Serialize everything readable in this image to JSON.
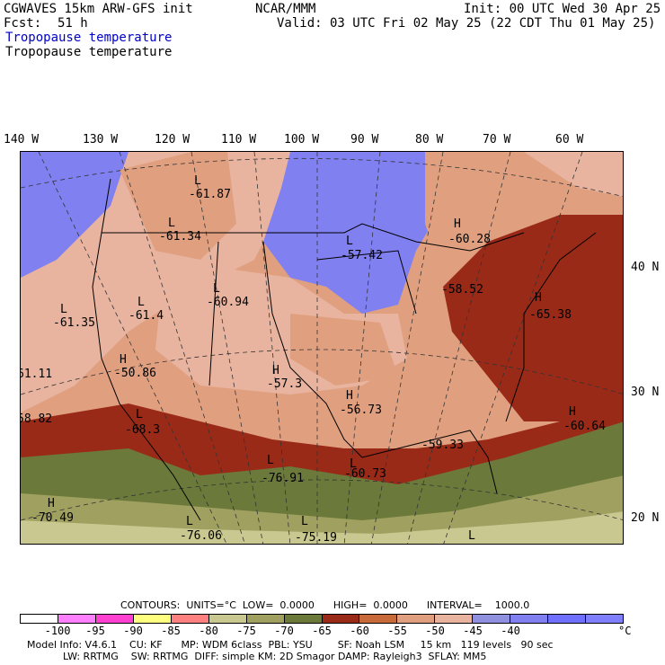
{
  "header": {
    "model": "CGWAVES 15km ARW-GFS init",
    "org": "NCAR/MMM",
    "init": "Init: 00 UTC Wed 30 Apr 25",
    "fcst_label": "Fcst:",
    "fcst_value": "51 h",
    "valid": "Valid: 03 UTC Fri 02 May 25 (22 CDT Thu 01 May 25)",
    "field_title_1": "Tropopause temperature",
    "field_title_2": "Tropopause temperature"
  },
  "longitude_labels": [
    "140 W",
    "130 W",
    "120 W",
    "110 W",
    "100 W",
    "90 W",
    "80 W",
    "70 W",
    "60 W"
  ],
  "latitude_labels": [
    "40 N",
    "30 N",
    "20 N"
  ],
  "pressure_centers": [
    {
      "type": "L",
      "value": "-61.87"
    },
    {
      "type": "L",
      "value": "-61.34"
    },
    {
      "type": "L",
      "value": "-60.94"
    },
    {
      "type": "L",
      "value": "-61.4"
    },
    {
      "type": "L",
      "value": "-61.35"
    },
    {
      "type": "H",
      "value": "-50.86"
    },
    {
      "type": "",
      "value": "61.11"
    },
    {
      "type": "",
      "value": "58.82"
    },
    {
      "type": "L",
      "value": "-68.3"
    },
    {
      "type": "H",
      "value": "-70.49"
    },
    {
      "type": "L",
      "value": "-76.06"
    },
    {
      "type": "L",
      "value": "-76.91"
    },
    {
      "type": "L",
      "value": "-75.19"
    },
    {
      "type": "H",
      "value": "-57.3"
    },
    {
      "type": "H",
      "value": "-56.73"
    },
    {
      "type": "L",
      "value": "-60.73"
    },
    {
      "type": "L",
      "value": "-57.42"
    },
    {
      "type": "H",
      "value": "-60.28"
    },
    {
      "type": "",
      "value": "-58.52"
    },
    {
      "type": "H",
      "value": "-65.38"
    },
    {
      "type": "",
      "value": "-59.33"
    },
    {
      "type": "H",
      "value": "-60.64"
    },
    {
      "type": "L",
      "value": ""
    }
  ],
  "contours": {
    "text": "CONTOURS:  UNITS=°C  LOW=  0.0000      HIGH=  0.0000      INTERVAL=    1000.0"
  },
  "legend": {
    "colors": [
      "#ffffff",
      "#ff80ff",
      "#ff40d0",
      "#ffff80",
      "#ff8080",
      "#c8c890",
      "#a0a060",
      "#6b7a3a",
      "#9a2a18",
      "#c86a3a",
      "#e0a080",
      "#e8b4a0",
      "#9090e0",
      "#8080f0",
      "#7070ff",
      "#8080ff"
    ],
    "ticks": [
      "-100",
      "-95",
      "-90",
      "-85",
      "-80",
      "-75",
      "-70",
      "-65",
      "-60",
      "-55",
      "-50",
      "-45",
      "-40"
    ],
    "unit": "°C"
  },
  "footer": {
    "line1": "Model Info: V4.6.1    CU: KF      MP: WDM 6class  PBL: YSU        SF: Noah LSM     15 km   119 levels   90 sec",
    "line2": "LW: RRTMG    SW: RRTMG  DIFF: simple KM: 2D Smagor DAMP: Rayleigh3  SFLAY: MM5"
  }
}
